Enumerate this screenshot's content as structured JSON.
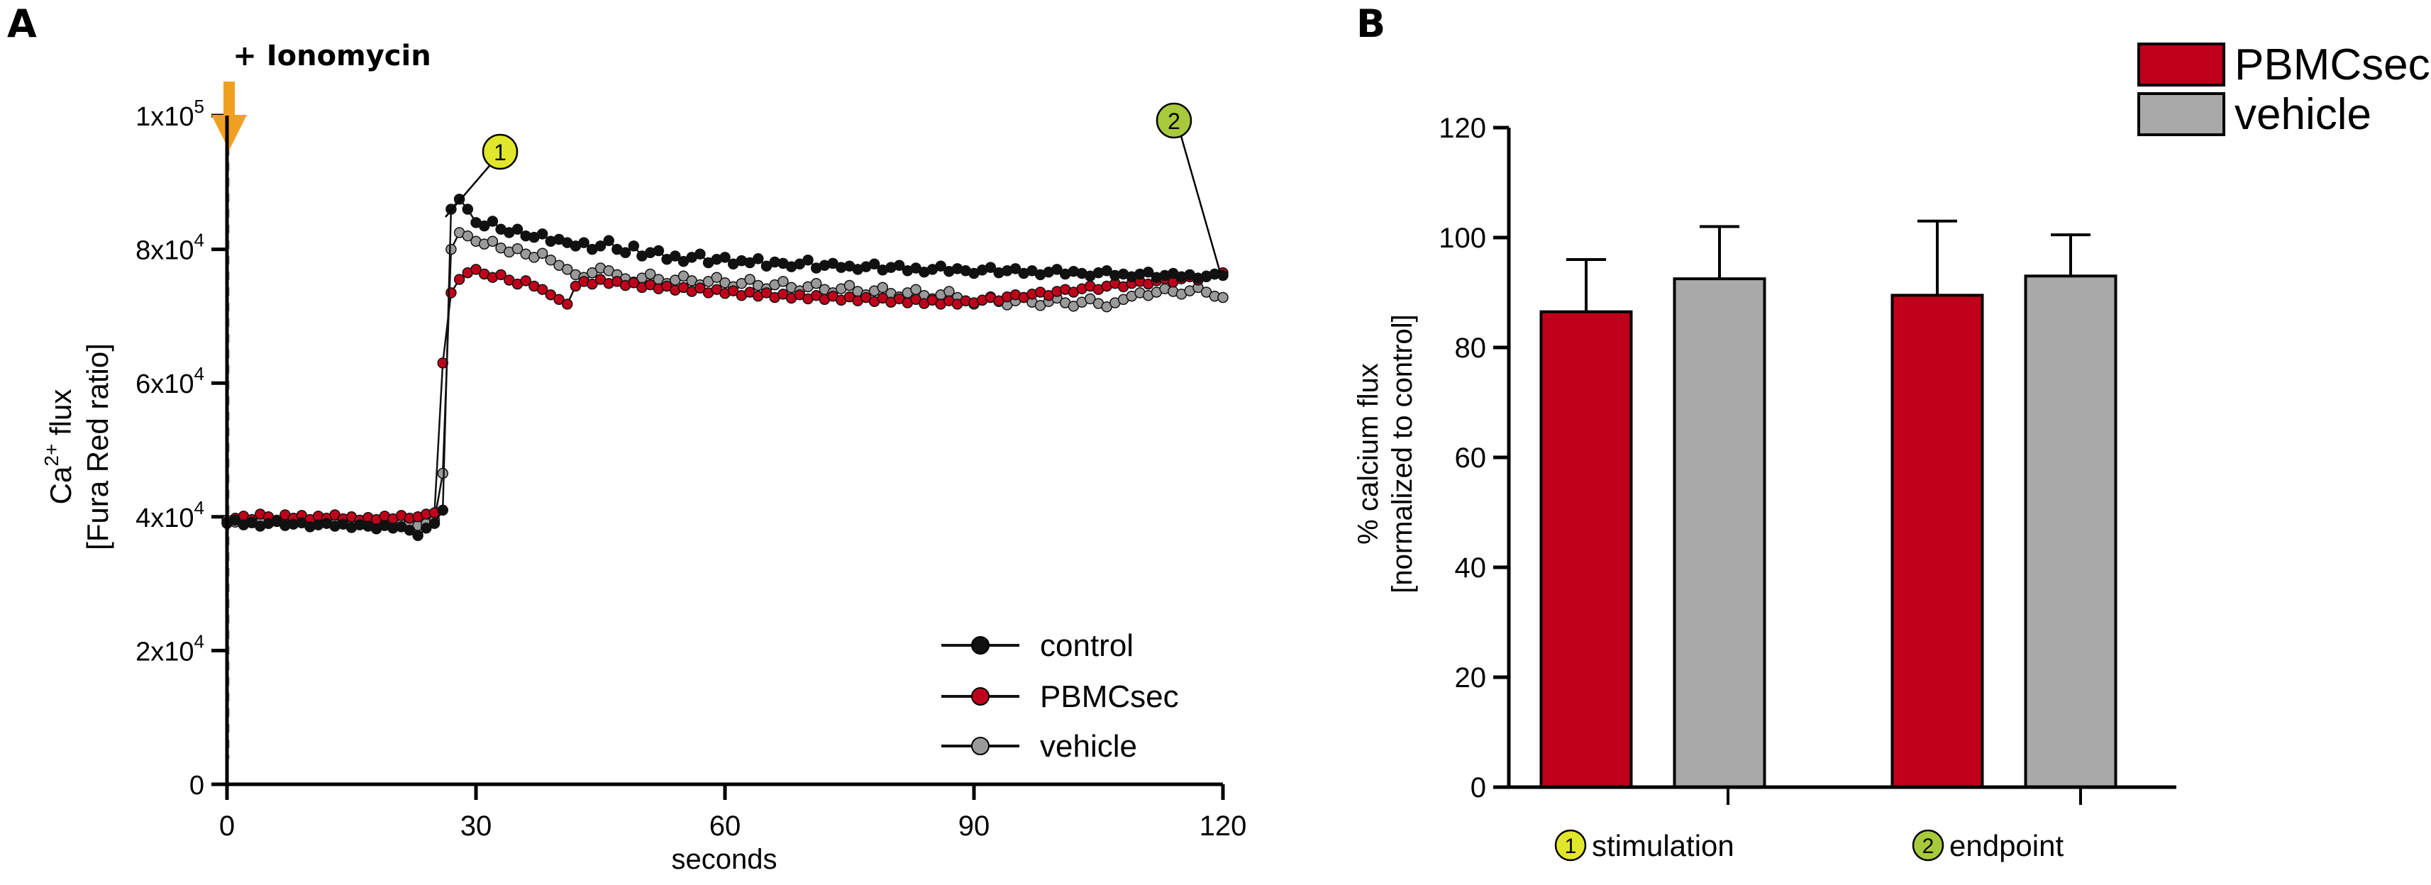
{
  "panels": {
    "a": {
      "letter": "A",
      "annotation": "+ Ionomycin"
    },
    "b": {
      "letter": "B"
    }
  },
  "colors": {
    "control": "#111111",
    "pbmcsec": "#c0001a",
    "vehicle": "#9a9a9a",
    "arrow": "#f0a020",
    "marker1": "#e2e62a",
    "marker2": "#a9c93c"
  },
  "chart_data": [
    {
      "type": "scatter",
      "xlabel": "seconds",
      "ylabel_line1": "Ca",
      "ylabel_sup": "2+",
      "ylabel_after": " flux",
      "ylabel_line2": "[Fura Red ratio]",
      "xlim": [
        0,
        120
      ],
      "ylim": [
        0,
        100000
      ],
      "x_ticks": [
        {
          "value": 0,
          "label": "0"
        },
        {
          "value": 30,
          "label": "30"
        },
        {
          "value": 60,
          "label": "60"
        },
        {
          "value": 90,
          "label": "90"
        },
        {
          "value": 120,
          "label": "120"
        }
      ],
      "y_ticks": [
        {
          "value": 0,
          "mant": "0",
          "exp": ""
        },
        {
          "value": 20000,
          "mant": "2x10",
          "exp": "4"
        },
        {
          "value": 40000,
          "mant": "4x10",
          "exp": "4"
        },
        {
          "value": 60000,
          "mant": "6x10",
          "exp": "4"
        },
        {
          "value": 80000,
          "mant": "8x10",
          "exp": "4"
        },
        {
          "value": 100000,
          "mant": "1x10",
          "exp": "5"
        }
      ],
      "stimulation_time": 25,
      "markers": [
        {
          "label": "1",
          "x": 26,
          "y": 87000
        },
        {
          "label": "2",
          "x": 120,
          "y": 76500
        }
      ],
      "legend_position": "bottom-right",
      "series": [
        {
          "name": "control",
          "x": [
            0,
            1,
            2,
            3,
            4,
            5,
            6,
            7,
            8,
            9,
            10,
            11,
            12,
            13,
            14,
            15,
            16,
            17,
            18,
            19,
            20,
            21,
            22,
            23,
            24,
            25,
            26,
            27,
            28,
            29,
            30,
            31,
            32,
            33,
            34,
            35,
            36,
            37,
            38,
            39,
            40,
            41,
            42,
            43,
            44,
            45,
            46,
            47,
            48,
            49,
            50,
            51,
            52,
            53,
            54,
            55,
            56,
            57,
            58,
            59,
            60,
            61,
            62,
            63,
            64,
            65,
            66,
            67,
            68,
            69,
            70,
            71,
            72,
            73,
            74,
            75,
            76,
            77,
            78,
            79,
            80,
            81,
            82,
            83,
            84,
            85,
            86,
            87,
            88,
            89,
            90,
            91,
            92,
            93,
            94,
            95,
            96,
            97,
            98,
            99,
            100,
            101,
            102,
            103,
            104,
            105,
            106,
            107,
            108,
            109,
            110,
            111,
            112,
            113,
            114,
            115,
            116,
            117,
            118,
            119,
            120
          ],
          "y": [
            39000,
            39500,
            38800,
            39200,
            38600,
            39000,
            39300,
            38700,
            38900,
            39100,
            38500,
            38800,
            39000,
            38600,
            38900,
            38400,
            38800,
            38600,
            38200,
            38700,
            38300,
            38500,
            38000,
            37200,
            38300,
            39000,
            41000,
            86000,
            87500,
            86000,
            84000,
            83500,
            84200,
            83000,
            82500,
            83000,
            82000,
            81800,
            82300,
            81200,
            81500,
            81000,
            80500,
            81000,
            80000,
            80500,
            81300,
            80000,
            79500,
            80500,
            79000,
            79500,
            79800,
            78500,
            79000,
            78200,
            78800,
            79300,
            78000,
            78500,
            78800,
            77800,
            78300,
            78000,
            78600,
            77500,
            78100,
            77900,
            77400,
            77800,
            78400,
            77200,
            77600,
            77900,
            77300,
            77500,
            77000,
            77400,
            77800,
            76900,
            77300,
            77600,
            76800,
            77200,
            76600,
            77000,
            77500,
            76700,
            77100,
            76800,
            76400,
            76900,
            77300,
            76500,
            76800,
            77100,
            76400,
            76800,
            76200,
            76600,
            77000,
            76300,
            76700,
            76400,
            76000,
            76500,
            76800,
            76100,
            76300,
            75900,
            76300,
            76600,
            75800,
            76100,
            76400,
            75900,
            76200,
            75700,
            76000,
            76300,
            76100
          ]
        },
        {
          "name": "PBMCsec",
          "x": [
            0,
            1,
            2,
            3,
            4,
            5,
            6,
            7,
            8,
            9,
            10,
            11,
            12,
            13,
            14,
            15,
            16,
            17,
            18,
            19,
            20,
            21,
            22,
            23,
            24,
            25,
            26,
            27,
            28,
            29,
            30,
            31,
            32,
            33,
            34,
            35,
            36,
            37,
            38,
            39,
            40,
            41,
            42,
            43,
            44,
            45,
            46,
            47,
            48,
            49,
            50,
            51,
            52,
            53,
            54,
            55,
            56,
            57,
            58,
            59,
            60,
            61,
            62,
            63,
            64,
            65,
            66,
            67,
            68,
            69,
            70,
            71,
            72,
            73,
            74,
            75,
            76,
            77,
            78,
            79,
            80,
            81,
            82,
            83,
            84,
            85,
            86,
            87,
            88,
            89,
            90,
            91,
            92,
            93,
            94,
            95,
            96,
            97,
            98,
            99,
            100,
            101,
            102,
            103,
            104,
            105,
            106,
            107,
            108,
            109,
            110,
            111,
            112,
            113,
            114,
            115,
            116,
            117,
            118,
            119,
            120
          ],
          "y": [
            39200,
            39800,
            40100,
            39600,
            40400,
            40000,
            39500,
            40300,
            39800,
            40200,
            39600,
            40100,
            39800,
            40300,
            39700,
            40000,
            39500,
            39900,
            39600,
            40100,
            39700,
            40200,
            39800,
            40000,
            40400,
            40600,
            63000,
            73500,
            75500,
            76500,
            77000,
            76300,
            75800,
            76200,
            75400,
            74800,
            75300,
            74500,
            74000,
            73200,
            72500,
            71800,
            74500,
            75200,
            74800,
            75500,
            74900,
            75200,
            74600,
            75000,
            74300,
            74700,
            74100,
            74500,
            73900,
            74300,
            73700,
            74200,
            73500,
            74000,
            73400,
            73800,
            73100,
            73600,
            73000,
            73500,
            72800,
            73300,
            72700,
            73200,
            72600,
            73100,
            72500,
            73000,
            72400,
            72900,
            72300,
            72800,
            72200,
            72700,
            72100,
            72600,
            72000,
            72500,
            71900,
            72400,
            71800,
            72300,
            71800,
            72300,
            72000,
            72400,
            72800,
            72300,
            72900,
            73200,
            72800,
            73300,
            73600,
            73100,
            73700,
            74000,
            73600,
            74100,
            74500,
            74000,
            74500,
            74900,
            74400,
            74900,
            75200,
            74800,
            75300,
            75600,
            75100,
            75600,
            75900,
            75400,
            75900,
            76300,
            76500
          ]
        },
        {
          "name": "vehicle",
          "x": [
            0,
            1,
            2,
            3,
            4,
            5,
            6,
            7,
            8,
            9,
            10,
            11,
            12,
            13,
            14,
            15,
            16,
            17,
            18,
            19,
            20,
            21,
            22,
            23,
            24,
            25,
            26,
            27,
            28,
            29,
            30,
            31,
            32,
            33,
            34,
            35,
            36,
            37,
            38,
            39,
            40,
            41,
            42,
            43,
            44,
            45,
            46,
            47,
            48,
            49,
            50,
            51,
            52,
            53,
            54,
            55,
            56,
            57,
            58,
            59,
            60,
            61,
            62,
            63,
            64,
            65,
            66,
            67,
            68,
            69,
            70,
            71,
            72,
            73,
            74,
            75,
            76,
            77,
            78,
            79,
            80,
            81,
            82,
            83,
            84,
            85,
            86,
            87,
            88,
            89,
            90,
            91,
            92,
            93,
            94,
            95,
            96,
            97,
            98,
            99,
            100,
            101,
            102,
            103,
            104,
            105,
            106,
            107,
            108,
            109,
            110,
            111,
            112,
            113,
            114,
            115,
            116,
            117,
            118,
            119,
            120
          ],
          "y": [
            39500,
            39200,
            39700,
            39100,
            39400,
            39000,
            39300,
            38900,
            39200,
            39500,
            38800,
            39100,
            39400,
            38900,
            39200,
            38700,
            39000,
            39300,
            38800,
            39100,
            38600,
            38900,
            39200,
            38700,
            39000,
            39500,
            46500,
            80000,
            82500,
            82000,
            81200,
            80800,
            81200,
            80200,
            79600,
            80100,
            79300,
            78800,
            79400,
            78400,
            77600,
            77000,
            76200,
            75800,
            76500,
            77200,
            76800,
            76200,
            75600,
            75100,
            75700,
            76300,
            75500,
            74900,
            75400,
            76000,
            75300,
            74700,
            75200,
            75800,
            75000,
            74400,
            74900,
            75500,
            74600,
            74100,
            74700,
            75200,
            74300,
            73800,
            74400,
            74900,
            74000,
            73500,
            74100,
            74600,
            73700,
            73200,
            73800,
            74300,
            73400,
            72900,
            73500,
            74000,
            73100,
            72600,
            73200,
            73700,
            72800,
            72300,
            71800,
            72400,
            72900,
            72200,
            71700,
            72300,
            72800,
            72100,
            71600,
            72200,
            72700,
            72000,
            71500,
            72100,
            72600,
            71900,
            71400,
            72000,
            72500,
            73000,
            73500,
            73100,
            73600,
            74100,
            73700,
            73300,
            73800,
            74300,
            73600,
            73000,
            72800
          ]
        }
      ]
    },
    {
      "type": "bar",
      "ylabel_line1": "% calcium flux",
      "ylabel_line2": "[normalized to control]",
      "ylim": [
        0,
        120
      ],
      "y_ticks": [
        0,
        20,
        40,
        60,
        80,
        100,
        120
      ],
      "legend_position": "top-right",
      "categories": [
        {
          "marker": "1",
          "label": "stimulation"
        },
        {
          "marker": "2",
          "label": "endpoint"
        }
      ],
      "series": [
        {
          "name": "PBMCsec",
          "values": [
            86.5,
            89.5
          ],
          "errors": [
            9.5,
            13.5
          ]
        },
        {
          "name": "vehicle",
          "values": [
            92.5,
            93
          ],
          "errors": [
            9.5,
            7.5
          ]
        }
      ]
    }
  ]
}
